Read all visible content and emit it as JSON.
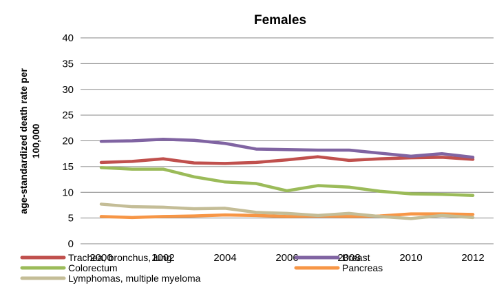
{
  "chart_data": {
    "type": "line",
    "title": "Females",
    "xlabel": "",
    "ylabel_lines": [
      "age-standardized death rate per",
      "100,000"
    ],
    "x": [
      2000,
      2001,
      2002,
      2003,
      2004,
      2005,
      2006,
      2007,
      2008,
      2009,
      2010,
      2011,
      2012
    ],
    "x_tick_labels": [
      "2000",
      "2002",
      "2004",
      "2006",
      "2008",
      "2010",
      "2012"
    ],
    "y_tick_labels": [
      "0",
      "5",
      "10",
      "15",
      "20",
      "25",
      "30",
      "35",
      "40"
    ],
    "ylim": [
      0,
      40
    ],
    "grid": "horizontal",
    "legend_position": "bottom",
    "series": [
      {
        "name": "Trachea, bronchus, lung",
        "color": "#c0504d",
        "values": [
          15.8,
          16.0,
          16.5,
          15.7,
          15.6,
          15.8,
          16.3,
          16.9,
          16.2,
          16.5,
          16.7,
          16.8,
          16.4
        ]
      },
      {
        "name": "Breast",
        "color": "#8064a2",
        "values": [
          19.9,
          20.0,
          20.3,
          20.1,
          19.5,
          18.4,
          18.3,
          18.2,
          18.2,
          17.6,
          17.0,
          17.5,
          16.8
        ]
      },
      {
        "name": "Colorectum",
        "color": "#9bbb59",
        "values": [
          14.8,
          14.5,
          14.5,
          13.0,
          12.0,
          11.7,
          10.3,
          11.3,
          11.0,
          10.2,
          9.7,
          9.6,
          9.4
        ]
      },
      {
        "name": "Pancreas",
        "color": "#f79646",
        "values": [
          5.3,
          5.1,
          5.3,
          5.4,
          5.6,
          5.5,
          5.3,
          5.4,
          5.3,
          5.4,
          5.8,
          5.8,
          5.7
        ]
      },
      {
        "name": "Lymphomas, multiple myeloma",
        "color": "#c4bd97",
        "values": [
          7.7,
          7.2,
          7.1,
          6.8,
          6.9,
          6.1,
          5.9,
          5.5,
          5.9,
          5.3,
          4.9,
          5.5,
          5.1
        ]
      }
    ]
  }
}
